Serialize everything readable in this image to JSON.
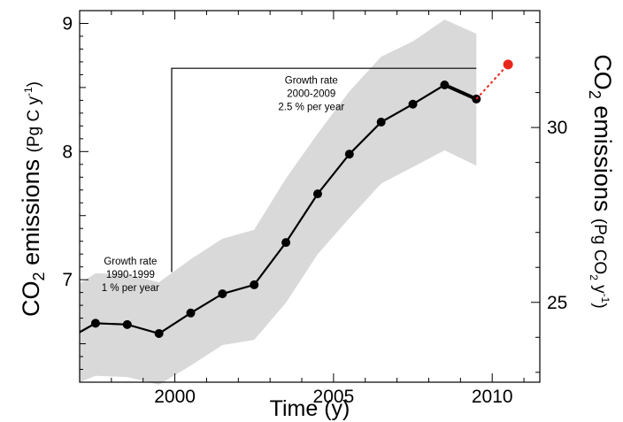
{
  "chart_data": {
    "type": "line",
    "title": "",
    "xlabel": "Time (y)",
    "ylabel_left": {
      "main": "CO",
      "sub": "2",
      "rest": " emissions ",
      "unit_pre": "(Pg C y",
      "unit_sup": "-1",
      "unit_post": ")"
    },
    "ylabel_right": {
      "main": "CO",
      "sub": "2",
      "rest": " emissions ",
      "unit_pre": "(Pg CO",
      "unit_sub": "2",
      "unit_mid": " y",
      "unit_sup": "-1",
      "unit_post": ")"
    },
    "xlim": [
      1997.0,
      2011.5
    ],
    "ylim": [
      6.2,
      9.1
    ],
    "right_axis": {
      "factor": 3.664,
      "ticks": [
        25,
        30
      ],
      "minor_step": 1
    },
    "x_ticks": [
      2000,
      2005,
      2010
    ],
    "y_ticks": [
      7,
      8,
      9
    ],
    "grid": false,
    "series": [
      {
        "x": [
          1997.0,
          1997.5,
          1998.5,
          1999.5,
          2000.5,
          2001.5,
          2002.5,
          2003.5,
          2004.5,
          2005.5,
          2006.5,
          2007.5,
          2008.5,
          2009.5
        ],
        "y": [
          6.59,
          6.66,
          6.65,
          6.58,
          6.74,
          6.89,
          6.96,
          7.29,
          7.67,
          7.98,
          8.23,
          8.37,
          8.52,
          8.41
        ],
        "color": "#000000"
      },
      {
        "x": [
          2009.5,
          2010.5
        ],
        "y": [
          8.41,
          8.68
        ],
        "color": "#e8261c",
        "style": "dotted"
      }
    ],
    "uncertainty_band": {
      "x": [
        1997.0,
        1997.5,
        1998.5,
        1999.5,
        2000.5,
        2001.5,
        2002.5,
        2003.5,
        2004.5,
        2005.5,
        2006.5,
        2007.5,
        2008.5,
        2009.5
      ],
      "upper": [
        6.97,
        7.05,
        7.04,
        6.98,
        7.16,
        7.32,
        7.39,
        7.79,
        8.14,
        8.47,
        8.74,
        8.86,
        9.03,
        8.92
      ],
      "lower": [
        6.2,
        6.25,
        6.24,
        6.18,
        6.33,
        6.49,
        6.53,
        6.82,
        7.2,
        7.48,
        7.75,
        7.88,
        8.01,
        7.89
      ],
      "color": "#d9d9d9"
    },
    "annotations": [
      {
        "lines": [
          "Growth rate",
          "1990-1999",
          "1 % per year"
        ],
        "x": 1998.6,
        "y": 7.12
      },
      {
        "lines": [
          "Growth rate",
          "2000-2009",
          "2.5 % per year"
        ],
        "x": 2004.3,
        "y": 8.53
      }
    ],
    "bracket": {
      "x_start": 1999.9,
      "x_end": 2009.5,
      "y_top": 8.65,
      "y_bottom": 7.06
    },
    "colors": {
      "series": "#000000",
      "projection": "#e8261c",
      "band": "#d9d9d9"
    }
  }
}
